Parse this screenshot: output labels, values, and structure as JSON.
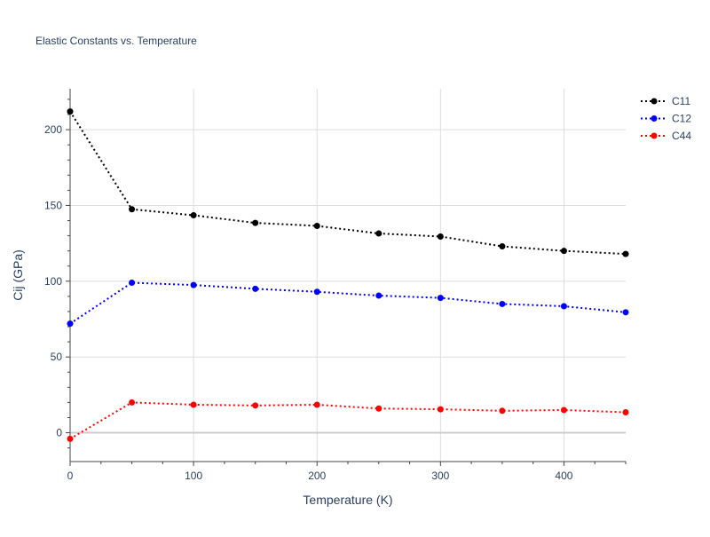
{
  "chart_data": {
    "type": "line",
    "title": "Elastic Constants vs. Temperature",
    "xlabel": "Temperature (K)",
    "ylabel": "Cij (GPa)",
    "xlim": [
      0,
      450
    ],
    "ylim": [
      -19,
      227
    ],
    "x_ticks": [
      0,
      100,
      200,
      300,
      400
    ],
    "y_ticks": [
      0,
      50,
      100,
      150,
      200
    ],
    "grid": true,
    "legend_position": "top-right",
    "x": [
      0,
      50,
      100,
      150,
      200,
      250,
      300,
      350,
      400,
      450
    ],
    "series": [
      {
        "name": "C11",
        "color": "#000000",
        "values": [
          212,
          147.5,
          143.5,
          138.5,
          136.5,
          131.5,
          129.5,
          123,
          120,
          118
        ]
      },
      {
        "name": "C12",
        "color": "#0000ff",
        "values": [
          72,
          99,
          97.5,
          95,
          93,
          90.5,
          89,
          85,
          83.5,
          79.5
        ]
      },
      {
        "name": "C44",
        "color": "#ff0000",
        "values": [
          -4,
          20,
          18.5,
          18,
          18.5,
          16,
          15.5,
          14.5,
          15,
          13.5
        ]
      }
    ]
  }
}
